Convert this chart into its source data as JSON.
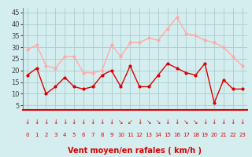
{
  "x": [
    0,
    1,
    2,
    3,
    4,
    5,
    6,
    7,
    8,
    9,
    10,
    11,
    12,
    13,
    14,
    15,
    16,
    17,
    18,
    19,
    20,
    21,
    22,
    23
  ],
  "wind_mean": [
    18,
    21,
    10,
    13,
    17,
    13,
    12,
    13,
    18,
    20,
    13,
    22,
    13,
    13,
    18,
    23,
    21,
    19,
    18,
    23,
    6,
    16,
    12,
    12
  ],
  "wind_gust": [
    29,
    31,
    22,
    21,
    26,
    26,
    19,
    19,
    20,
    31,
    26,
    32,
    32,
    34,
    33,
    38,
    43,
    36,
    35,
    33,
    32,
    30,
    26,
    22
  ],
  "mean_color": "#dd0000",
  "gust_color": "#ffaaaa",
  "bg_color": "#d4eef0",
  "grid_color": "#aacccc",
  "xlabel": "Vent moyen/en rafales ( km/h )",
  "xlabel_color": "#dd0000",
  "yticks": [
    5,
    10,
    15,
    20,
    25,
    30,
    35,
    40,
    45
  ],
  "ylim": [
    3,
    47
  ],
  "xlim": [
    -0.5,
    23.5
  ],
  "arrow_chars": [
    "↓",
    "↓",
    "↓",
    "↓",
    "↓",
    "↓",
    "↓",
    "↓",
    "↓",
    "↓",
    "↘",
    "↙",
    "↓",
    "↘",
    "↘",
    "↓",
    "↓",
    "↘",
    "↘",
    "↓",
    "↓",
    "↓",
    "↓",
    "↓"
  ]
}
